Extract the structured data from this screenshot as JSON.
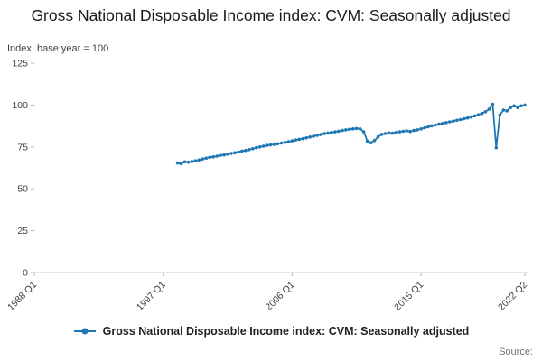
{
  "title": "Gross National Disposable Income index: CVM: Seasonally adjusted",
  "axis_note": "Index, base year = 100",
  "source_label": "Source:",
  "legend": {
    "label": "Gross National Disposable Income index: CVM: Seasonally adjusted",
    "color": "#1f77b4"
  },
  "chart_data": {
    "type": "line",
    "title": "Gross National Disposable Income index: CVM: Seasonally adjusted",
    "xlabel": "",
    "ylabel": "Index, base year = 100",
    "ylim": [
      0,
      125
    ],
    "y_ticks": [
      0,
      25,
      50,
      75,
      100,
      125
    ],
    "x_range": [
      1988.0,
      2022.5
    ],
    "x_ticks": [
      {
        "label": "1988 Q1",
        "value": 1988.0
      },
      {
        "label": "1997 Q1",
        "value": 1997.0
      },
      {
        "label": "2006 Q1",
        "value": 2006.0
      },
      {
        "label": "2015 Q1",
        "value": 2015.0
      },
      {
        "label": "2022 Q2",
        "value": 2022.25
      }
    ],
    "grid": false,
    "legend_position": "bottom",
    "marker": "circle",
    "series": [
      {
        "name": "Gross National Disposable Income index: CVM: Seasonally adjusted",
        "color": "#1f77b4",
        "points": [
          [
            1998.0,
            65.4
          ],
          [
            1998.25,
            65.0
          ],
          [
            1998.5,
            66.1
          ],
          [
            1998.75,
            65.9
          ],
          [
            1999.0,
            66.3
          ],
          [
            1999.25,
            66.7
          ],
          [
            1999.5,
            67.2
          ],
          [
            1999.75,
            67.8
          ],
          [
            2000.0,
            68.3
          ],
          [
            2000.25,
            68.8
          ],
          [
            2000.5,
            69.1
          ],
          [
            2000.75,
            69.5
          ],
          [
            2001.0,
            70.0
          ],
          [
            2001.25,
            70.2
          ],
          [
            2001.5,
            70.7
          ],
          [
            2001.75,
            71.1
          ],
          [
            2002.0,
            71.5
          ],
          [
            2002.25,
            72.0
          ],
          [
            2002.5,
            72.5
          ],
          [
            2002.75,
            72.9
          ],
          [
            2003.0,
            73.4
          ],
          [
            2003.25,
            73.9
          ],
          [
            2003.5,
            74.5
          ],
          [
            2003.75,
            75.0
          ],
          [
            2004.0,
            75.5
          ],
          [
            2004.25,
            75.9
          ],
          [
            2004.5,
            76.2
          ],
          [
            2004.75,
            76.5
          ],
          [
            2005.0,
            76.9
          ],
          [
            2005.25,
            77.3
          ],
          [
            2005.5,
            77.7
          ],
          [
            2005.75,
            78.1
          ],
          [
            2006.0,
            78.6
          ],
          [
            2006.25,
            79.1
          ],
          [
            2006.5,
            79.5
          ],
          [
            2006.75,
            79.9
          ],
          [
            2007.0,
            80.4
          ],
          [
            2007.25,
            80.9
          ],
          [
            2007.5,
            81.4
          ],
          [
            2007.75,
            81.9
          ],
          [
            2008.0,
            82.4
          ],
          [
            2008.25,
            82.9
          ],
          [
            2008.5,
            83.3
          ],
          [
            2008.75,
            83.6
          ],
          [
            2009.0,
            84.0
          ],
          [
            2009.25,
            84.4
          ],
          [
            2009.5,
            84.8
          ],
          [
            2009.75,
            85.2
          ],
          [
            2010.0,
            85.5
          ],
          [
            2010.25,
            85.8
          ],
          [
            2010.5,
            86.0
          ],
          [
            2010.75,
            85.8
          ],
          [
            2011.0,
            84.0
          ],
          [
            2011.25,
            78.5
          ],
          [
            2011.5,
            77.5
          ],
          [
            2011.75,
            78.8
          ],
          [
            2012.0,
            81.0
          ],
          [
            2012.25,
            82.5
          ],
          [
            2012.5,
            83.0
          ],
          [
            2012.75,
            83.4
          ],
          [
            2013.0,
            83.2
          ],
          [
            2013.25,
            83.6
          ],
          [
            2013.5,
            84.0
          ],
          [
            2013.75,
            84.3
          ],
          [
            2014.0,
            84.6
          ],
          [
            2014.25,
            84.2
          ],
          [
            2014.5,
            84.8
          ],
          [
            2014.75,
            85.2
          ],
          [
            2015.0,
            85.8
          ],
          [
            2015.25,
            86.4
          ],
          [
            2015.5,
            87.0
          ],
          [
            2015.75,
            87.6
          ],
          [
            2016.0,
            88.1
          ],
          [
            2016.25,
            88.6
          ],
          [
            2016.5,
            89.0
          ],
          [
            2016.75,
            89.5
          ],
          [
            2017.0,
            90.0
          ],
          [
            2017.25,
            90.4
          ],
          [
            2017.5,
            90.9
          ],
          [
            2017.75,
            91.3
          ],
          [
            2018.0,
            91.8
          ],
          [
            2018.25,
            92.3
          ],
          [
            2018.5,
            92.9
          ],
          [
            2018.75,
            93.5
          ],
          [
            2019.0,
            94.2
          ],
          [
            2019.25,
            95.0
          ],
          [
            2019.5,
            96.0
          ],
          [
            2019.75,
            97.5
          ],
          [
            2020.0,
            100.5
          ],
          [
            2020.25,
            74.5
          ],
          [
            2020.5,
            94.0
          ],
          [
            2020.75,
            97.0
          ],
          [
            2021.0,
            96.5
          ],
          [
            2021.25,
            98.5
          ],
          [
            2021.5,
            99.5
          ],
          [
            2021.75,
            98.5
          ],
          [
            2022.0,
            99.5
          ],
          [
            2022.25,
            100.0
          ]
        ]
      }
    ]
  }
}
